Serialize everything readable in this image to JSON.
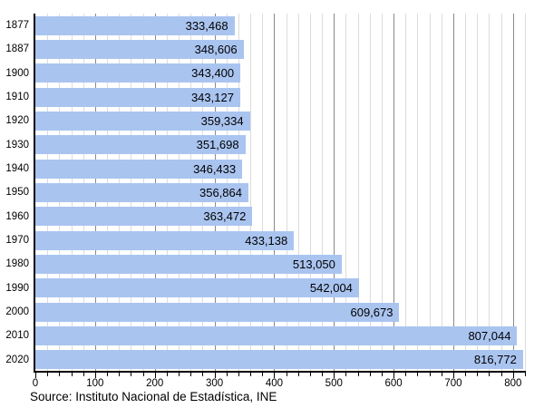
{
  "chart_data": {
    "type": "bar",
    "orientation": "horizontal",
    "title": "",
    "xlabel": "",
    "ylabel": "",
    "categories": [
      "1877",
      "1887",
      "1900",
      "1910",
      "1920",
      "1930",
      "1940",
      "1950",
      "1960",
      "1970",
      "1980",
      "1990",
      "2000",
      "2010",
      "2020"
    ],
    "values": [
      333468,
      348606,
      343400,
      343127,
      359334,
      351698,
      346433,
      356864,
      363472,
      433138,
      513050,
      542004,
      609673,
      807044,
      816772
    ],
    "value_labels": [
      "333,468",
      "348,606",
      "343,400",
      "343,127",
      "359,334",
      "351,698",
      "346,433",
      "356,864",
      "363,472",
      "433,138",
      "513,050",
      "542,004",
      "609,673",
      "807,044",
      "816,772"
    ],
    "x_axis": {
      "unit": "thousands",
      "tick_values": [
        0,
        100,
        200,
        300,
        400,
        500,
        600,
        700,
        800
      ],
      "tick_labels": [
        "0",
        "100",
        "200",
        "300",
        "400",
        "500",
        "600",
        "700",
        "800"
      ],
      "minor_step": 20,
      "major_step": 100,
      "axis_max": 820
    },
    "grid": {
      "enabled": true,
      "minor_every": 20,
      "major_every": 100
    },
    "legend": "none",
    "source": "Source: Instituto Nacional de Estadística, INE"
  },
  "colors": {
    "bar_fill": "#aac4f0",
    "grid_minor": "#dcdcdc",
    "grid_major": "#8a8a8a",
    "axis": "#000000",
    "text": "#000000",
    "background": "#ffffff"
  }
}
